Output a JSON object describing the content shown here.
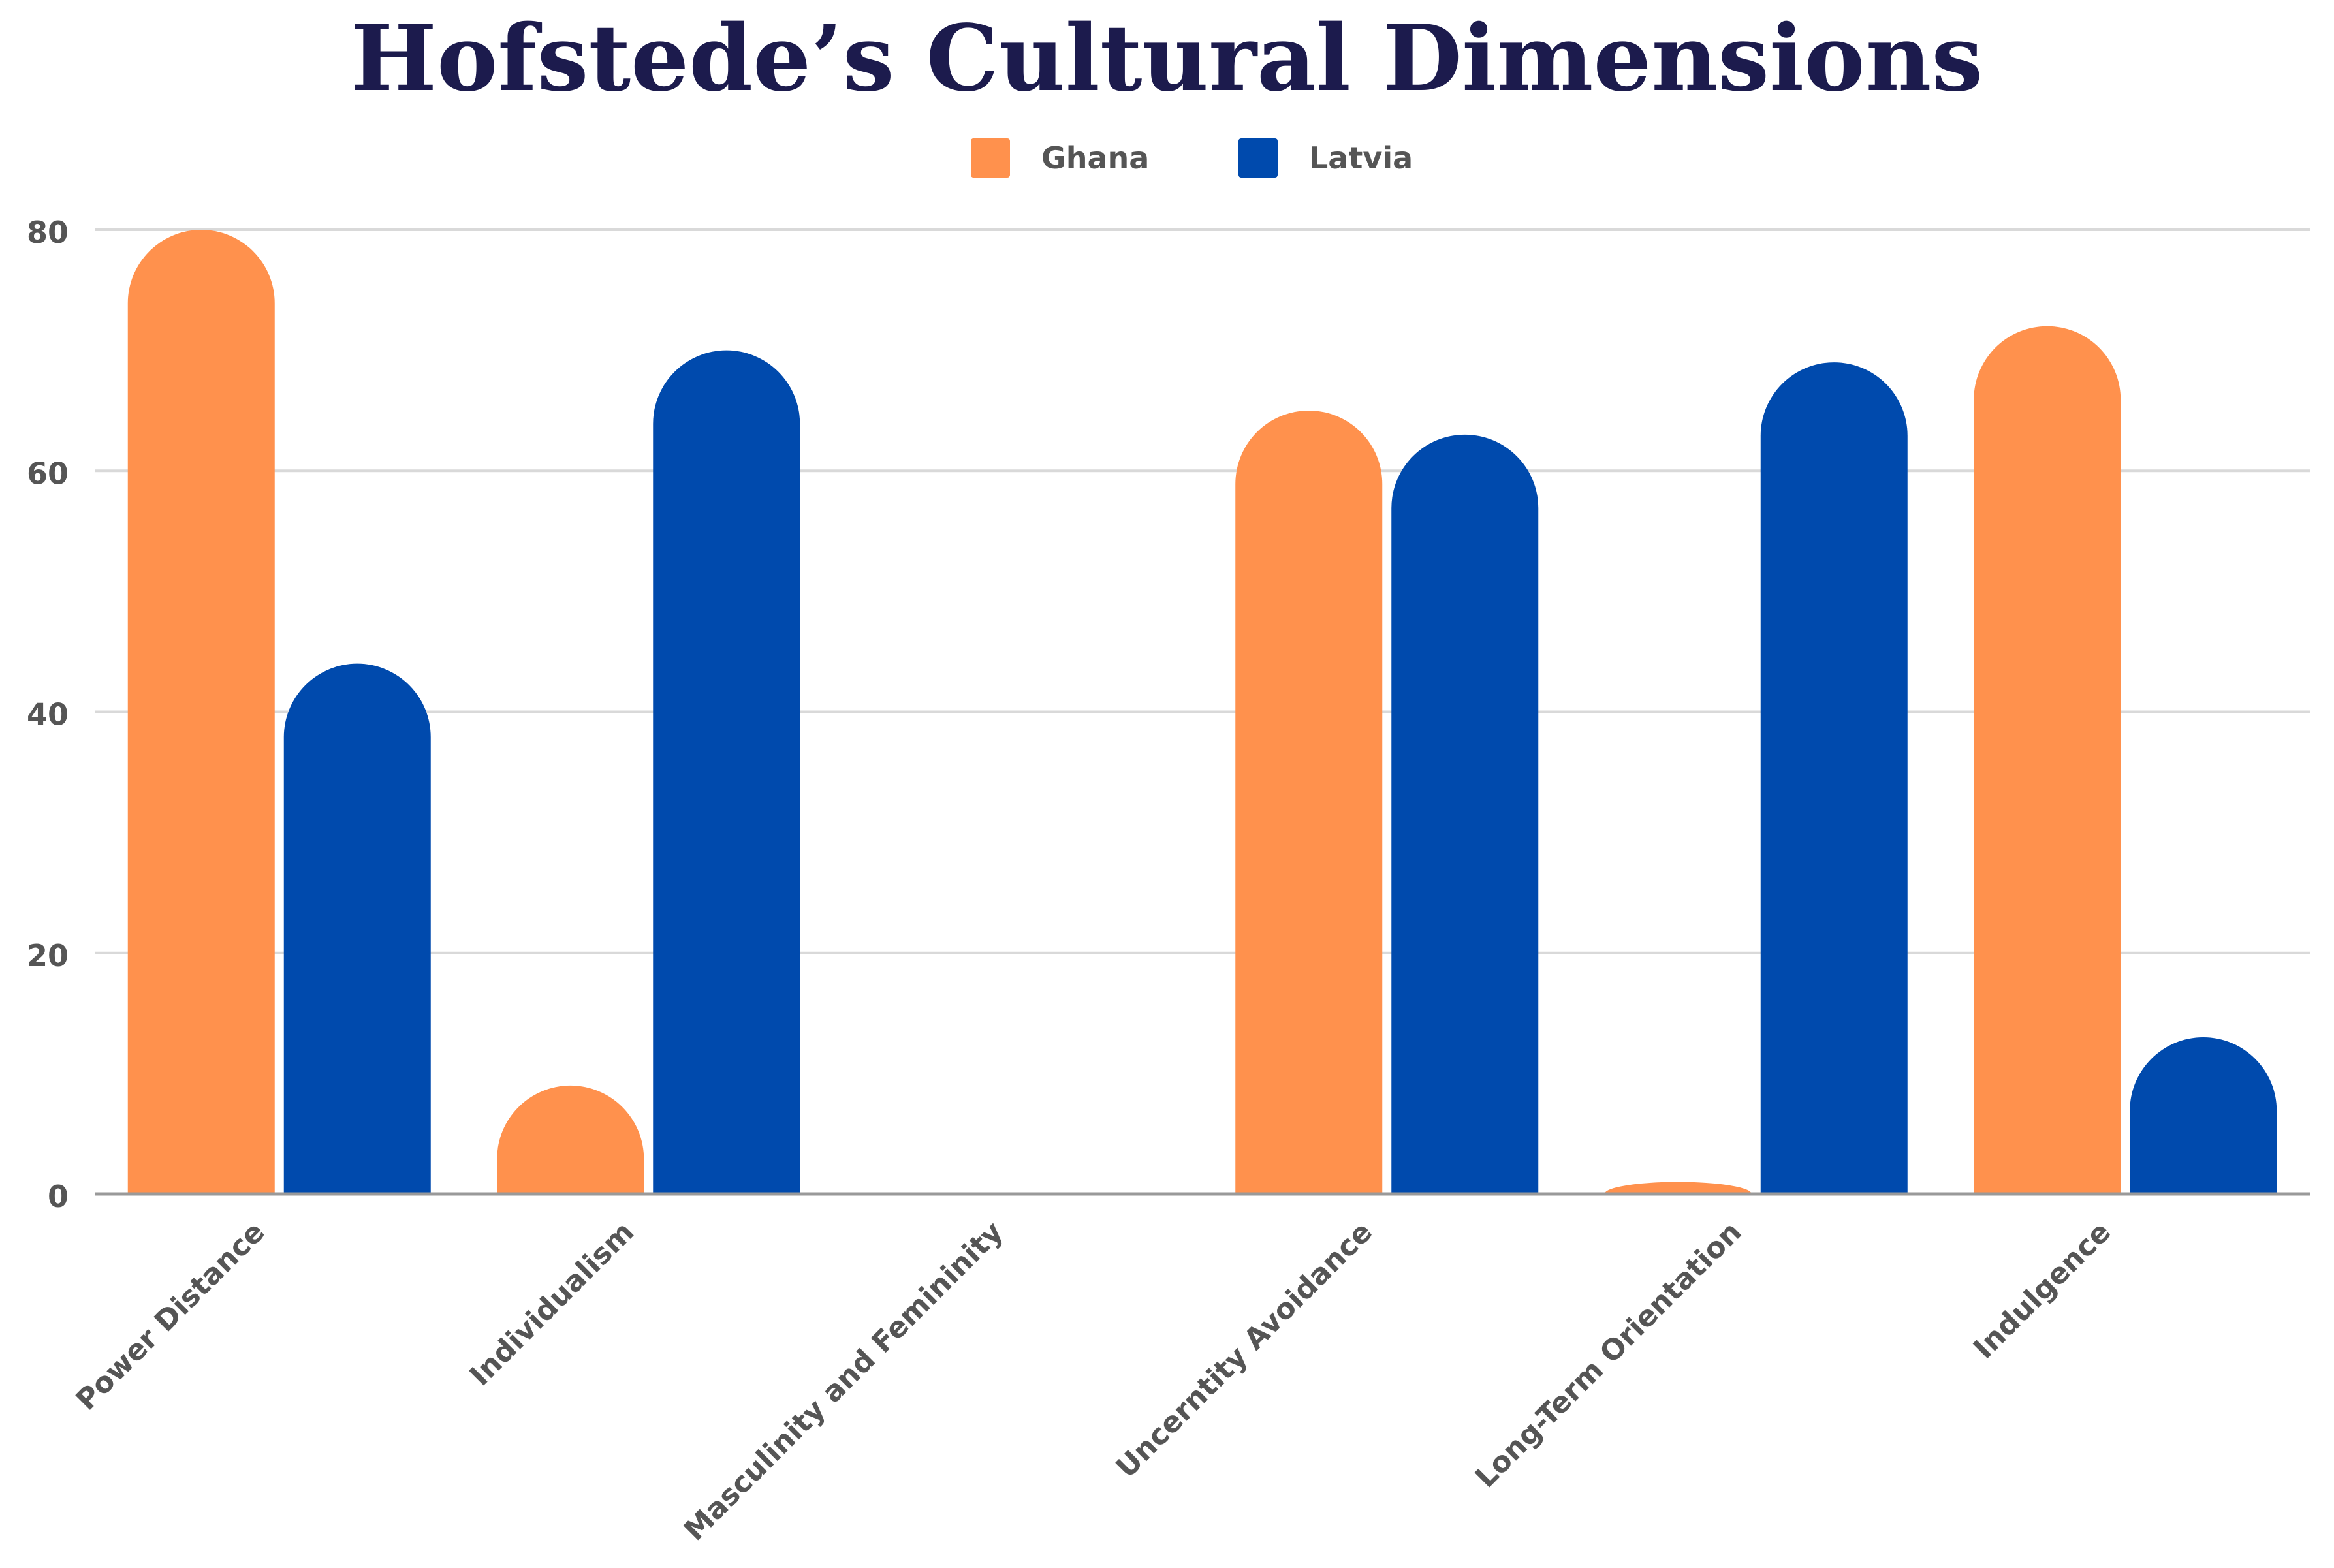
{
  "chart_data": {
    "type": "bar",
    "title": "Hofstede’s Cultural Dimensions",
    "xlabel": "",
    "ylabel": "",
    "categories": [
      "Power Distance",
      "Individualism",
      "Masculinity and Femininity",
      "Uncerntity Avoidance",
      "Long-Term Orientation",
      "Indulgence"
    ],
    "series": [
      {
        "name": "Ghana",
        "color": "#ff914d",
        "values": [
          80,
          9,
          0,
          65,
          1,
          72
        ]
      },
      {
        "name": "Latvia",
        "color": "#004aad",
        "values": [
          44,
          70,
          0,
          63,
          69,
          13
        ]
      }
    ],
    "ylim": [
      0,
      80
    ],
    "yticks": [
      0,
      20,
      40,
      60,
      80
    ],
    "grid": true,
    "legend_position": "top-center",
    "colors": {
      "title": "#1c1b4d",
      "tick_text": "#555555",
      "grid": "#d9d9d9",
      "axis": "#999999"
    }
  }
}
